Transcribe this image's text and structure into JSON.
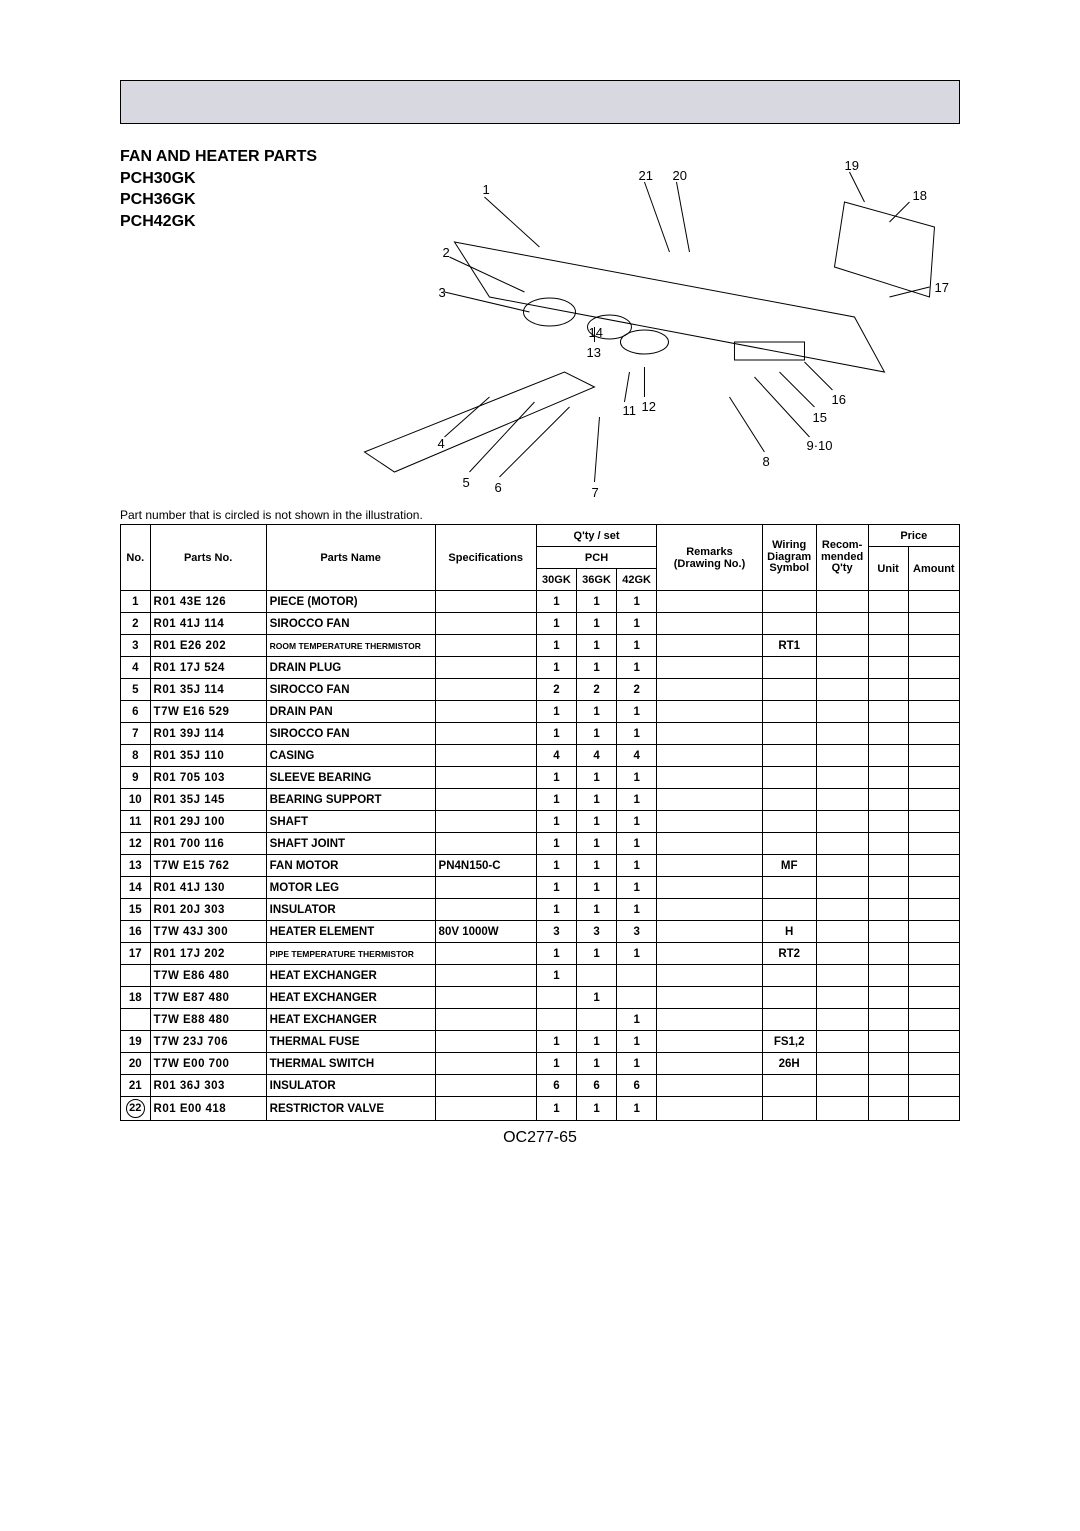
{
  "header": {
    "title": "FAN AND HEATER PARTS",
    "models": [
      "PCH30GK",
      "PCH36GK",
      "PCH42GK"
    ]
  },
  "note": "Part number that is circled is not shown in the illustration.",
  "footer": "OC277-65",
  "diagram": {
    "callouts": [
      "1",
      "2",
      "3",
      "4",
      "5",
      "6",
      "7",
      "8",
      "9·10",
      "11",
      "12",
      "13",
      "14",
      "15",
      "16",
      "17",
      "18",
      "19",
      "20",
      "21"
    ]
  },
  "table": {
    "group_header_qty": "Q'ty / set",
    "group_header_pch": "PCH",
    "group_header_price": "Price",
    "cols_qty": [
      "30GK",
      "36GK",
      "42GK"
    ],
    "headers": {
      "no": "No.",
      "parts_no": "Parts No.",
      "parts_name": "Parts Name",
      "spec": "Specifications",
      "remarks": "Remarks",
      "remarks2": "(Drawing No.)",
      "wiring": "Wiring",
      "wiring2": "Diagram",
      "wiring3": "Symbol",
      "recom": "Recom-",
      "recom2": "mended",
      "recom3": "Q'ty",
      "unit": "Unit",
      "amount": "Amount"
    },
    "rows": [
      {
        "no": "1",
        "pn": "R01  43E  126",
        "name": "PIECE (MOTOR)",
        "spec": "",
        "q": [
          "1",
          "1",
          "1"
        ],
        "remarks": "",
        "wiring": ""
      },
      {
        "no": "2",
        "pn": "R01  41J  114",
        "name": "SIROCCO FAN",
        "spec": "",
        "q": [
          "1",
          "1",
          "1"
        ],
        "remarks": "",
        "wiring": ""
      },
      {
        "no": "3",
        "pn": "R01  E26  202",
        "name": "ROOM TEMPERATURE THERMISTOR",
        "name_small": true,
        "spec": "",
        "q": [
          "1",
          "1",
          "1"
        ],
        "remarks": "",
        "wiring": "RT1"
      },
      {
        "no": "4",
        "pn": "R01  17J  524",
        "name": "DRAIN PLUG",
        "spec": "",
        "q": [
          "1",
          "1",
          "1"
        ],
        "remarks": "",
        "wiring": ""
      },
      {
        "no": "5",
        "pn": "R01  35J  114",
        "name": "SIROCCO FAN",
        "spec": "",
        "q": [
          "2",
          "2",
          "2"
        ],
        "remarks": "",
        "wiring": ""
      },
      {
        "no": "6",
        "pn": "T7W  E16  529",
        "name": "DRAIN PAN",
        "spec": "",
        "q": [
          "1",
          "1",
          "1"
        ],
        "remarks": "",
        "wiring": ""
      },
      {
        "no": "7",
        "pn": "R01  39J  114",
        "name": "SIROCCO FAN",
        "spec": "",
        "q": [
          "1",
          "1",
          "1"
        ],
        "remarks": "",
        "wiring": ""
      },
      {
        "no": "8",
        "pn": "R01  35J  110",
        "name": "CASING",
        "spec": "",
        "q": [
          "4",
          "4",
          "4"
        ],
        "remarks": "",
        "wiring": ""
      },
      {
        "no": "9",
        "pn": "R01  705  103",
        "name": "SLEEVE BEARING",
        "spec": "",
        "q": [
          "1",
          "1",
          "1"
        ],
        "remarks": "",
        "wiring": ""
      },
      {
        "no": "10",
        "pn": "R01  35J  145",
        "name": "BEARING SUPPORT",
        "spec": "",
        "q": [
          "1",
          "1",
          "1"
        ],
        "remarks": "",
        "wiring": ""
      },
      {
        "no": "11",
        "pn": "R01  29J  100",
        "name": "SHAFT",
        "spec": "",
        "q": [
          "1",
          "1",
          "1"
        ],
        "remarks": "",
        "wiring": ""
      },
      {
        "no": "12",
        "pn": "R01  700  116",
        "name": "SHAFT JOINT",
        "spec": "",
        "q": [
          "1",
          "1",
          "1"
        ],
        "remarks": "",
        "wiring": ""
      },
      {
        "no": "13",
        "pn": "T7W  E15  762",
        "name": "FAN MOTOR",
        "spec": "PN4N150-C",
        "q": [
          "1",
          "1",
          "1"
        ],
        "remarks": "",
        "wiring": "MF"
      },
      {
        "no": "14",
        "pn": "R01  41J  130",
        "name": "MOTOR LEG",
        "spec": "",
        "q": [
          "1",
          "1",
          "1"
        ],
        "remarks": "",
        "wiring": ""
      },
      {
        "no": "15",
        "pn": "R01  20J  303",
        "name": "INSULATOR",
        "spec": "",
        "q": [
          "1",
          "1",
          "1"
        ],
        "remarks": "",
        "wiring": ""
      },
      {
        "no": "16",
        "pn": "T7W  43J  300",
        "name": "HEATER ELEMENT",
        "spec": "80V  1000W",
        "q": [
          "3",
          "3",
          "3"
        ],
        "remarks": "",
        "wiring": "H"
      },
      {
        "no": "17",
        "pn": "R01  17J  202",
        "name": "PIPE TEMPERATURE THERMISTOR",
        "name_small": true,
        "spec": "",
        "q": [
          "1",
          "1",
          "1"
        ],
        "remarks": "",
        "wiring": "RT2"
      },
      {
        "no": "",
        "pn": "T7W  E86  480",
        "name": "HEAT EXCHANGER",
        "spec": "",
        "q": [
          "1",
          "",
          ""
        ],
        "remarks": "",
        "wiring": ""
      },
      {
        "no": "18",
        "pn": "T7W  E87  480",
        "name": "HEAT EXCHANGER",
        "spec": "",
        "q": [
          "",
          "1",
          ""
        ],
        "remarks": "",
        "wiring": ""
      },
      {
        "no": "",
        "pn": "T7W  E88  480",
        "name": "HEAT EXCHANGER",
        "spec": "",
        "q": [
          "",
          "",
          "1"
        ],
        "remarks": "",
        "wiring": ""
      },
      {
        "no": "19",
        "pn": "T7W  23J  706",
        "name": "THERMAL FUSE",
        "spec": "",
        "q": [
          "1",
          "1",
          "1"
        ],
        "remarks": "",
        "wiring": "FS1,2"
      },
      {
        "no": "20",
        "pn": "T7W  E00  700",
        "name": "THERMAL SWITCH",
        "spec": "",
        "q": [
          "1",
          "1",
          "1"
        ],
        "remarks": "",
        "wiring": "26H"
      },
      {
        "no": "21",
        "pn": "R01  36J  303",
        "name": "INSULATOR",
        "spec": "",
        "q": [
          "6",
          "6",
          "6"
        ],
        "remarks": "",
        "wiring": ""
      },
      {
        "no": "22",
        "circled": true,
        "pn": "R01  E00  418",
        "name": "RESTRICTOR VALVE",
        "spec": "",
        "q": [
          "1",
          "1",
          "1"
        ],
        "remarks": "",
        "wiring": ""
      }
    ]
  }
}
